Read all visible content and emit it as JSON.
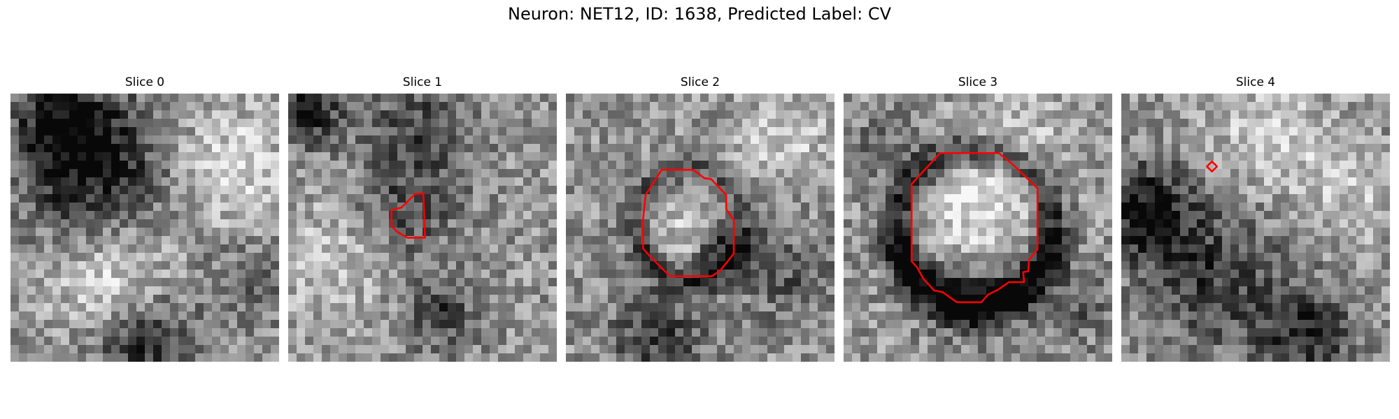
{
  "figure": {
    "title": "Neuron: NET12, ID: 1638, Predicted Label: CV",
    "contour_color": "#ff0000",
    "colormap": "gray"
  },
  "slices": [
    {
      "label": "Slice 0"
    },
    {
      "label": "Slice 1"
    },
    {
      "label": "Slice 2"
    },
    {
      "label": "Slice 3"
    },
    {
      "label": "Slice 4"
    }
  ]
}
